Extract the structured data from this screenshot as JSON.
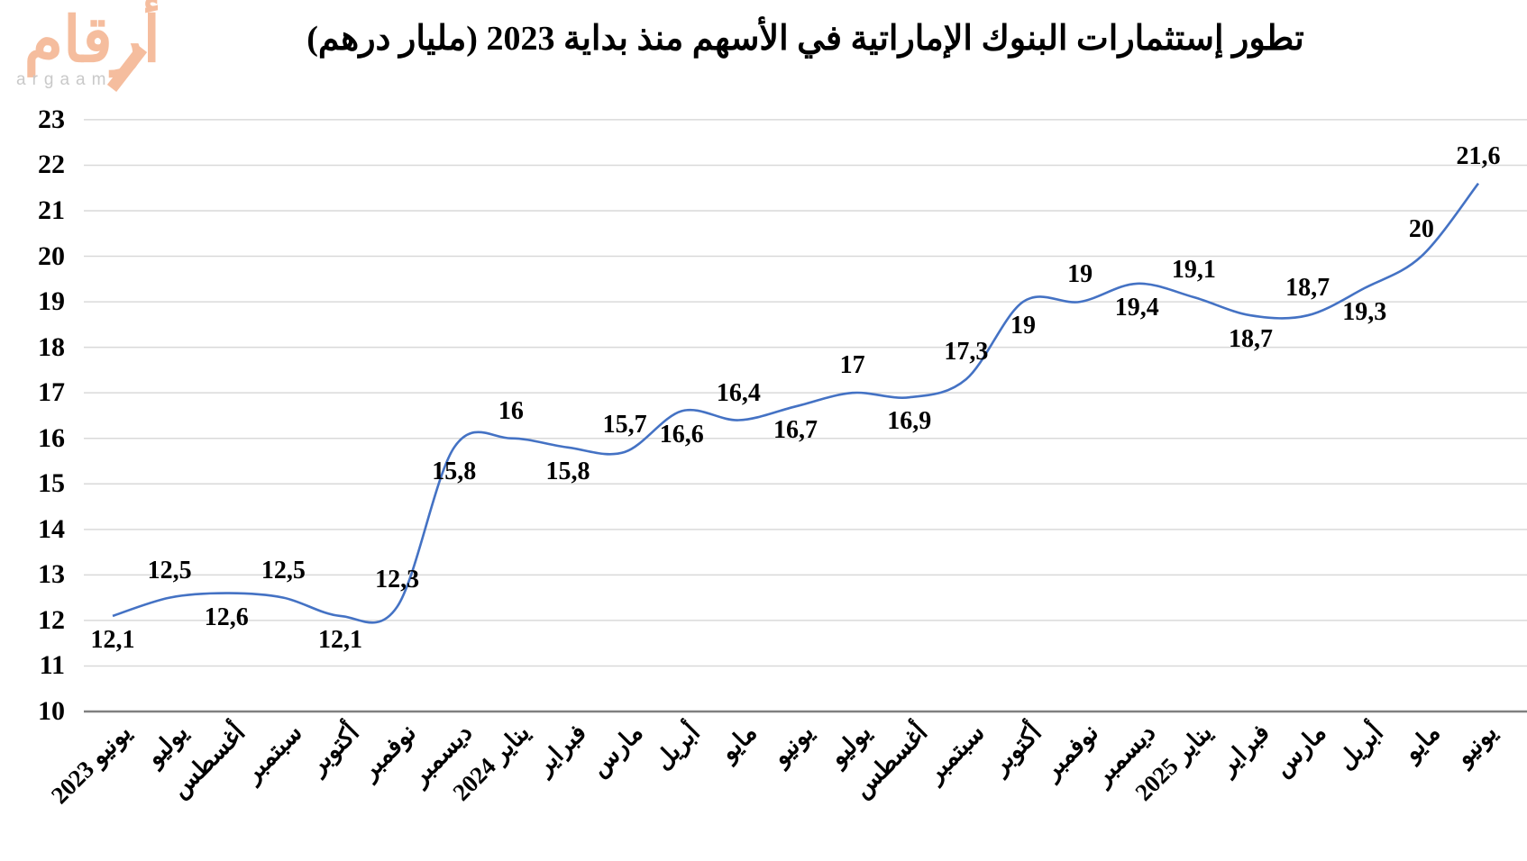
{
  "logo": {
    "arabic_text": "أرقام",
    "latin_text": "argaam",
    "accent_color": "#F5BD9E",
    "latin_color": "#C9C9C9"
  },
  "title": "تطور إستثمارات البنوك الإماراتية في الأسهم منذ بداية 2023 (مليار درهم)",
  "chart_data": {
    "type": "line",
    "smooth": true,
    "title": "تطور إستثمارات البنوك الإماراتية في الأسهم منذ بداية 2023 (مليار درهم)",
    "xlabel": "",
    "ylabel": "",
    "ylim": [
      10,
      23
    ],
    "ytick_step": 1,
    "yticks": [
      10,
      11,
      12,
      13,
      14,
      15,
      16,
      17,
      18,
      19,
      20,
      21,
      22,
      23
    ],
    "grid": "horizontal",
    "legend": "none",
    "line_color": "#4472C4",
    "gridline_color": "#D9D9D9",
    "axis_line_color": "#808080",
    "label_color": "#000000",
    "categories": [
      "يونيو 2023",
      "يوليو",
      "أغسطس",
      "سبتمبر",
      "أكتوبر",
      "نوفمبر",
      "ديسمبر",
      "يناير 2024",
      "فبراير",
      "مارس",
      "أبريل",
      "مايو",
      "يونيو",
      "يوليو",
      "أغسطس",
      "سبتمبر",
      "أكتوبر",
      "نوفمبر",
      "ديسمبر",
      "يناير 2025",
      "فبراير",
      "مارس",
      "أبريل",
      "مايو",
      "يونيو"
    ],
    "values": [
      12.1,
      12.5,
      12.6,
      12.5,
      12.1,
      12.3,
      15.8,
      16,
      15.8,
      15.7,
      16.6,
      16.4,
      16.7,
      17,
      16.9,
      17.3,
      19,
      19,
      19.4,
      19.1,
      18.7,
      18.7,
      19.3,
      20,
      21.6
    ],
    "point_labels": [
      "12,1",
      "12,5",
      "12,6",
      "12,5",
      "12,1",
      "12,3",
      "15,8",
      "16",
      "15,8",
      "15,7",
      "16,6",
      "16,4",
      "16,7",
      "17",
      "16,9",
      "17,3",
      "19",
      "19",
      "19,4",
      "19,1",
      "18,7",
      "18,7",
      "19,3",
      "20",
      "21,6"
    ],
    "label_positions": [
      "below",
      "above",
      "below",
      "above",
      "below",
      "above",
      "below",
      "above",
      "below",
      "above",
      "below",
      "above",
      "below",
      "above",
      "below",
      "above",
      "below",
      "above",
      "below",
      "above",
      "below",
      "above",
      "below",
      "above",
      "above"
    ]
  }
}
